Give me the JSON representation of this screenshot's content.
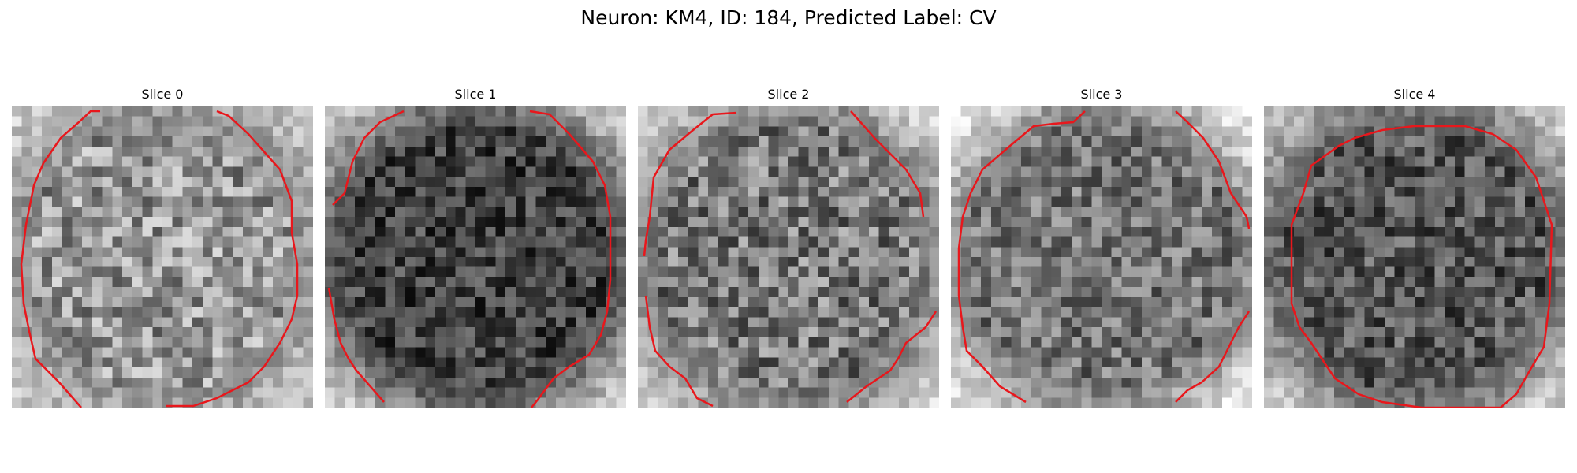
{
  "figure": {
    "title": "Neuron: KM4, ID: 184, Predicted Label: CV",
    "contour_color": "#e8171c"
  },
  "panels": [
    {
      "title": "Slice 0",
      "contour": "edge-gap"
    },
    {
      "title": "Slice 1",
      "contour": "edge-gap"
    },
    {
      "title": "Slice 2",
      "contour": "edge-gap"
    },
    {
      "title": "Slice 3",
      "contour": "edge-gap"
    },
    {
      "title": "Slice 4",
      "contour": "closed"
    }
  ]
}
